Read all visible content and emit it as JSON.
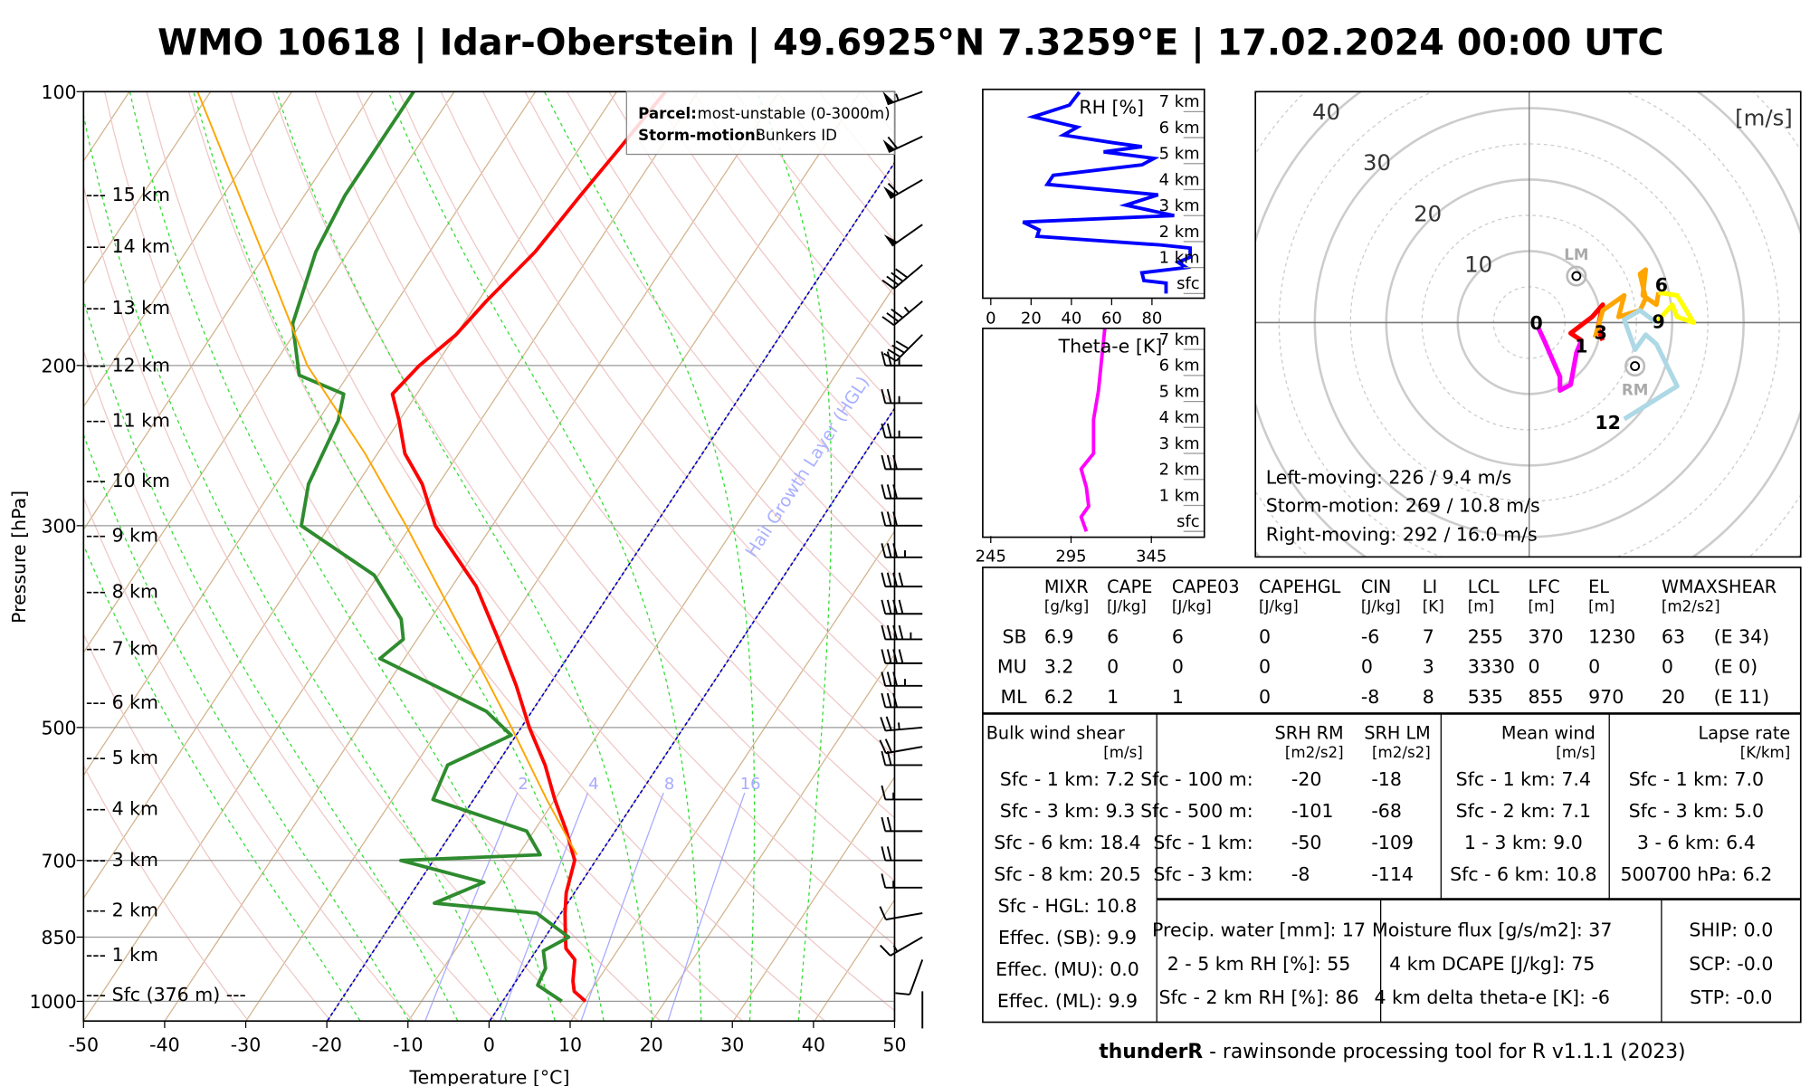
{
  "title": "WMO 10618 | Idar-Oberstein | 49.6925°N 7.3259°E | 17.02.2024 00:00 UTC",
  "footer": {
    "brand": "thunderR",
    "text": " - rawinsonde processing tool for R v1.1.1 (2023)"
  },
  "colors": {
    "temperature": "#ff0000",
    "dewpoint": "#2e8b2e",
    "parcel": "#ffa500",
    "isotherm_highlight": "#0000cc",
    "rh": "#0000ff",
    "theta_e": "#ff00ff"
  },
  "chart_data": [
    {
      "type": "line",
      "name": "skew-T log-p diagram",
      "xlabel": "Temperature [°C]",
      "ylabel": "Pressure [hPa]",
      "xlim": [
        -50,
        50
      ],
      "ylim": [
        1050,
        100
      ],
      "x_ticks": [
        "-50",
        "-40",
        "-30",
        "-20",
        "-10",
        "0",
        "10",
        "20",
        "30",
        "40",
        "50"
      ],
      "y_ticks": [
        "100",
        "200",
        "300",
        "500",
        "700",
        "850",
        "1000"
      ],
      "height_labels": [
        {
          "p": 130,
          "label": "--- 15 km"
        },
        {
          "p": 148,
          "label": "--- 14 km"
        },
        {
          "p": 173,
          "label": "--- 13 km"
        },
        {
          "p": 200,
          "label": "--- 12 km"
        },
        {
          "p": 230,
          "label": "--- 11 km"
        },
        {
          "p": 268,
          "label": "--- 10 km"
        },
        {
          "p": 308,
          "label": "--- 9 km"
        },
        {
          "p": 355,
          "label": "--- 8 km"
        },
        {
          "p": 410,
          "label": "--- 7 km"
        },
        {
          "p": 470,
          "label": "--- 6 km"
        },
        {
          "p": 540,
          "label": "--- 5 km"
        },
        {
          "p": 615,
          "label": "--- 4 km"
        },
        {
          "p": 700,
          "label": "--- 3 km"
        },
        {
          "p": 795,
          "label": "--- 2 km"
        },
        {
          "p": 890,
          "label": "--- 1 km"
        },
        {
          "p": 985,
          "label": "--- Sfc (376 m) ---"
        }
      ],
      "mixing_ratio_labels": [
        "2",
        "4",
        "8",
        "16"
      ],
      "mixing_ratios": [
        2,
        4,
        8,
        16
      ],
      "highlight_isotherms": [
        0,
        -20
      ],
      "annotation": "Hail Growth Layer (HGL)",
      "legend": {
        "position": "top-right",
        "parcel_label": "Parcel:",
        "parcel_value": "most-unstable (0-3000m)",
        "storm_label": "Storm-motion:",
        "storm_value": "Bunkers ID"
      },
      "series": [
        {
          "name": "temperature",
          "points": [
            [
              1000,
              10.2
            ],
            [
              975,
              8.0
            ],
            [
              950,
              7.0
            ],
            [
              900,
              5.5
            ],
            [
              875,
              3.5
            ],
            [
              850,
              2.5
            ],
            [
              800,
              0.5
            ],
            [
              760,
              -1.0
            ],
            [
              700,
              -2.6
            ],
            [
              650,
              -6
            ],
            [
              600,
              -10
            ],
            [
              550,
              -14
            ],
            [
              500,
              -19
            ],
            [
              450,
              -24
            ],
            [
              400,
              -30
            ],
            [
              350,
              -37
            ],
            [
              300,
              -47
            ],
            [
              270,
              -52
            ],
            [
              250,
              -56.6
            ],
            [
              230,
              -60
            ],
            [
              215,
              -63
            ],
            [
              200,
              -62
            ],
            [
              185,
              -60
            ],
            [
              170,
              -59
            ],
            [
              150,
              -57
            ],
            [
              130,
              -56
            ],
            [
              115,
              -55
            ],
            [
              100,
              -54
            ]
          ]
        },
        {
          "name": "dewpoint",
          "points": [
            [
              1000,
              7.3
            ],
            [
              960,
              3
            ],
            [
              920,
              2.6
            ],
            [
              880,
              0.9
            ],
            [
              850,
              2.9
            ],
            [
              800,
              -3
            ],
            [
              780,
              -16.4
            ],
            [
              740,
              -12
            ],
            [
              700,
              -24
            ],
            [
              690,
              -7.3
            ],
            [
              650,
              -10.9
            ],
            [
              600,
              -25
            ],
            [
              550,
              -26
            ],
            [
              510,
              -20.6
            ],
            [
              480,
              -25.6
            ],
            [
              450,
              -34
            ],
            [
              420,
              -43
            ],
            [
              400,
              -41.7
            ],
            [
              380,
              -43.6
            ],
            [
              340,
              -50.5
            ],
            [
              300,
              -63.5
            ],
            [
              270,
              -66
            ],
            [
              230,
              -67.5
            ],
            [
              215,
              -69
            ],
            [
              205,
              -76
            ],
            [
              180,
              -81
            ],
            [
              150,
              -84
            ],
            [
              130,
              -85
            ],
            [
              100,
              -85
            ]
          ]
        },
        {
          "name": "parcel",
          "points": [
            [
              690,
              -2.8
            ],
            [
              600,
              -11
            ],
            [
              500,
              -21.2
            ],
            [
              400,
              -34
            ],
            [
              300,
              -50.6
            ],
            [
              250,
              -61.5
            ],
            [
              200,
              -75.8
            ],
            [
              150,
              -90.6
            ],
            [
              100,
              -111.6
            ]
          ]
        }
      ],
      "wind_barbs": [
        {
          "p": 100,
          "dir": 250,
          "spd": 55
        },
        {
          "p": 112,
          "dir": 245,
          "spd": 60
        },
        {
          "p": 125,
          "dir": 240,
          "spd": 60
        },
        {
          "p": 140,
          "dir": 235,
          "spd": 50
        },
        {
          "p": 155,
          "dir": 230,
          "spd": 40
        },
        {
          "p": 170,
          "dir": 230,
          "spd": 35
        },
        {
          "p": 185,
          "dir": 225,
          "spd": 40
        },
        {
          "p": 200,
          "dir": 270,
          "spd": 25
        },
        {
          "p": 220,
          "dir": 270,
          "spd": 25
        },
        {
          "p": 240,
          "dir": 270,
          "spd": 25
        },
        {
          "p": 260,
          "dir": 270,
          "spd": 30
        },
        {
          "p": 280,
          "dir": 270,
          "spd": 30
        },
        {
          "p": 300,
          "dir": 270,
          "spd": 30
        },
        {
          "p": 325,
          "dir": 270,
          "spd": 35
        },
        {
          "p": 350,
          "dir": 270,
          "spd": 40
        },
        {
          "p": 375,
          "dir": 270,
          "spd": 40
        },
        {
          "p": 400,
          "dir": 270,
          "spd": 45
        },
        {
          "p": 425,
          "dir": 270,
          "spd": 40
        },
        {
          "p": 450,
          "dir": 270,
          "spd": 35
        },
        {
          "p": 475,
          "dir": 270,
          "spd": 30
        },
        {
          "p": 500,
          "dir": 265,
          "spd": 25
        },
        {
          "p": 525,
          "dir": 260,
          "spd": 20
        },
        {
          "p": 550,
          "dir": 270,
          "spd": 20
        },
        {
          "p": 600,
          "dir": 270,
          "spd": 15
        },
        {
          "p": 650,
          "dir": 270,
          "spd": 20
        },
        {
          "p": 700,
          "dir": 270,
          "spd": 20
        },
        {
          "p": 750,
          "dir": 270,
          "spd": 15
        },
        {
          "p": 800,
          "dir": 260,
          "spd": 10
        },
        {
          "p": 850,
          "dir": 240,
          "spd": 15
        },
        {
          "p": 900,
          "dir": 200,
          "spd": 10
        },
        {
          "p": 975,
          "dir": 180,
          "spd": 0
        }
      ]
    },
    {
      "type": "line",
      "name": "relative humidity profile",
      "title": "RH [%]",
      "xlim": [
        -4,
        106
      ],
      "x_ticks": [
        "0",
        "20",
        "40",
        "60",
        "80"
      ],
      "y_labels": [
        "sfc",
        "1 km",
        "2 km",
        "3 km",
        "4 km",
        "5 km",
        "6 km",
        "7 km"
      ],
      "points": [
        [
          87,
          0
        ],
        [
          87,
          0.4
        ],
        [
          76,
          0.5
        ],
        [
          75,
          0.8
        ],
        [
          97,
          1.0
        ],
        [
          93,
          1.2
        ],
        [
          99,
          1.4
        ],
        [
          99,
          1.75
        ],
        [
          84,
          1.87
        ],
        [
          23,
          2.2
        ],
        [
          24,
          2.45
        ],
        [
          16,
          2.75
        ],
        [
          91,
          3.0
        ],
        [
          67,
          3.4
        ],
        [
          83,
          3.8
        ],
        [
          28,
          4.2
        ],
        [
          31,
          4.55
        ],
        [
          75,
          4.95
        ],
        [
          81,
          5.2
        ],
        [
          56,
          5.45
        ],
        [
          75,
          5.65
        ],
        [
          61,
          5.8
        ],
        [
          36,
          6.1
        ],
        [
          43,
          6.4
        ],
        [
          21,
          6.8
        ],
        [
          39,
          7.25
        ],
        [
          44,
          7.75
        ]
      ]
    },
    {
      "type": "line",
      "name": "theta-e profile",
      "title": "Theta-e [K]",
      "xlim": [
        240,
        378
      ],
      "x_ticks": [
        "245",
        "295",
        "345"
      ],
      "y_labels": [
        "sfc",
        "1 km",
        "2 km",
        "3 km",
        "4 km",
        "5 km",
        "6 km",
        "7 km"
      ],
      "points": [
        [
          304.5,
          0
        ],
        [
          301.3,
          0.56
        ],
        [
          306,
          0.97
        ],
        [
          304.5,
          1.7
        ],
        [
          301.3,
          2.4
        ],
        [
          309,
          3.0
        ],
        [
          309,
          4.3
        ],
        [
          312,
          5.4
        ],
        [
          314,
          6.6
        ],
        [
          316,
          7.8
        ]
      ]
    },
    {
      "type": "line",
      "name": "hodograph",
      "unit_label": "[m/s]",
      "ring_labels": [
        "10",
        "20",
        "30",
        "40"
      ],
      "segments": [
        {
          "name": "0-1 km",
          "color": "#ff00ff",
          "points": [
            [
              1.3,
              -0.8
            ],
            [
              2.1,
              -2.5
            ],
            [
              4.3,
              -7.6
            ],
            [
              4.3,
              -9.5
            ],
            [
              5.8,
              -8.7
            ],
            [
              6.6,
              -4.2
            ],
            [
              7.3,
              -2.5
            ]
          ]
        },
        {
          "name": "1-3 km",
          "color": "#ff0000",
          "points": [
            [
              7.3,
              -2.5
            ],
            [
              5.8,
              -1.5
            ],
            [
              8.8,
              0.8
            ],
            [
              10.3,
              2.5
            ],
            [
              9.6,
              -0.8
            ],
            [
              10.3,
              -2.5
            ]
          ]
        },
        {
          "name": "3-6 km",
          "color": "#ffa500",
          "points": [
            [
              9.2,
              -2.1
            ],
            [
              10.3,
              1.7
            ],
            [
              13.3,
              3.8
            ],
            [
              12.5,
              0.8
            ],
            [
              15.5,
              1.7
            ],
            [
              16.3,
              3.4
            ],
            [
              15.5,
              6.8
            ],
            [
              16.3,
              7.4
            ],
            [
              15.9,
              3.8
            ],
            [
              17.8,
              2.5
            ],
            [
              18.1,
              4.2
            ]
          ]
        },
        {
          "name": "6-9 km",
          "color": "#ffff00",
          "points": [
            [
              18.1,
              4.2
            ],
            [
              20.7,
              3.8
            ],
            [
              21.5,
              2.5
            ],
            [
              23,
              0
            ],
            [
              20.7,
              0.8
            ],
            [
              20,
              2.5
            ],
            [
              17.8,
              0
            ]
          ]
        },
        {
          "name": "9-12 km",
          "color": "#add8e6",
          "points": [
            [
              17.8,
              0
            ],
            [
              15.5,
              1.7
            ],
            [
              13.3,
              0.4
            ],
            [
              14.8,
              -3.8
            ],
            [
              16.3,
              -1.7
            ],
            [
              17.8,
              -3
            ],
            [
              20.7,
              -8.9
            ],
            [
              13.3,
              -13.5
            ]
          ]
        }
      ],
      "height_marks": [
        {
          "label": "0",
          "u": 1,
          "v": 0
        },
        {
          "label": "1",
          "u": 7.3,
          "v": -3.2
        },
        {
          "label": "3",
          "u": 10,
          "v": -1.3
        },
        {
          "label": "6",
          "u": 18.5,
          "v": 5.3
        },
        {
          "label": "9",
          "u": 18.1,
          "v": 0.2
        },
        {
          "label": "12",
          "u": 11,
          "v": -13.9
        }
      ],
      "storm_markers": [
        {
          "label": "LM",
          "u": 6.6,
          "v": 6.5
        },
        {
          "label": "RM",
          "u": 14.8,
          "v": -6.1
        }
      ],
      "texts": [
        "Left-moving: 226 / 9.4 m/s",
        "Storm-motion: 269 / 10.8 m/s",
        "Right-moving: 292 / 16.0 m/s"
      ]
    }
  ],
  "params": {
    "headers": [
      [
        "MIXR",
        "[g/kg]"
      ],
      [
        "CAPE",
        "[J/kg]"
      ],
      [
        "CAPE03",
        "[J/kg]"
      ],
      [
        "CAPEHGL",
        "[J/kg]"
      ],
      [
        "CIN",
        "[J/kg]"
      ],
      [
        "LI",
        "[K]"
      ],
      [
        "LCL",
        "[m]"
      ],
      [
        "LFC",
        "[m]"
      ],
      [
        "EL",
        "[m]"
      ],
      [
        "WMAXSHEAR",
        "[m2/s2]"
      ]
    ],
    "rows": [
      [
        "SB",
        "6.9",
        "6",
        "6",
        "0",
        "-6",
        "7",
        "255",
        "370",
        "1230",
        "63",
        "(E 34)"
      ],
      [
        "MU",
        "3.2",
        "0",
        "0",
        "0",
        "0",
        "3",
        "3330",
        "0",
        "0",
        "0",
        "(E 0)"
      ],
      [
        "ML",
        "6.2",
        "1",
        "1",
        "0",
        "-8",
        "8",
        "535",
        "855",
        "970",
        "20",
        "(E 11)"
      ]
    ]
  },
  "shear": {
    "title": "Bulk wind shear",
    "unit": "[m/s]",
    "rows": [
      "Sfc - 1 km: 7.2",
      "Sfc - 3 km: 9.3",
      "Sfc - 6 km: 18.4",
      "Sfc - 8 km: 20.5",
      "Sfc - HGL: 10.8",
      "Effec. (SB): 9.9",
      "Effec. (MU): 0.0",
      "Effec. (ML): 9.9"
    ]
  },
  "srh": {
    "rm_title": "SRH RM",
    "lm_title": "SRH LM",
    "unit": "[m2/s2]",
    "rows": [
      [
        "Sfc - 100 m:",
        "-20",
        "-18"
      ],
      [
        "Sfc - 500 m:",
        "-101",
        "-68"
      ],
      [
        "Sfc - 1 km:",
        "-50",
        "-109"
      ],
      [
        "Sfc - 3 km:",
        "-8",
        "-114"
      ]
    ]
  },
  "mean_wind": {
    "title": "Mean wind",
    "unit": "[m/s]",
    "rows": [
      "Sfc - 1 km: 7.4",
      "Sfc - 2 km: 7.1",
      "1 - 3 km: 9.0",
      "Sfc - 6 km: 10.8"
    ]
  },
  "lapse": {
    "title": "Lapse rate",
    "unit": "[K/km]",
    "rows": [
      "Sfc - 1 km: 7.0",
      "Sfc - 3 km: 5.0",
      "3 - 6 km: 6.4",
      "500700 hPa: 6.2"
    ]
  },
  "moisture": [
    "Precip. water [mm]: 17",
    "2 - 5 km RH [%]: 55",
    "Sfc - 2 km RH [%]: 86"
  ],
  "flux": [
    "Moisture flux [g/s/m2]: 37",
    "4 km DCAPE [J/kg]: 75",
    "4 km delta theta-e [K]: -6"
  ],
  "composite": [
    "SHIP: 0.0",
    "SCP: -0.0",
    "STP: -0.0"
  ]
}
